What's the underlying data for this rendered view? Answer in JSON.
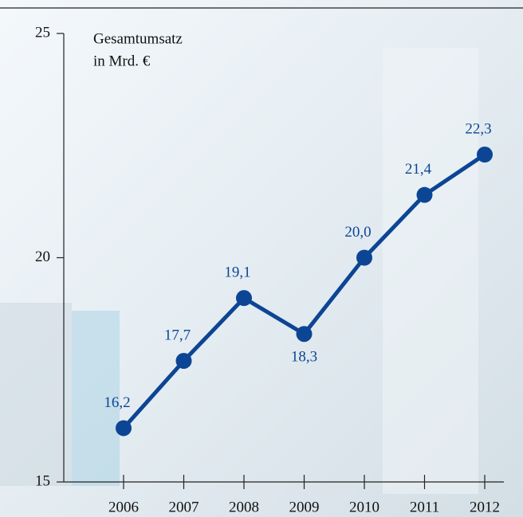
{
  "chart_data": {
    "type": "line",
    "ylabel": [
      "Gesamtumsatz",
      "in Mrd. €"
    ],
    "categories": [
      "2006",
      "2007",
      "2008",
      "2009",
      "2010",
      "2011",
      "2012"
    ],
    "series": [
      {
        "name": "Gesamtumsatz",
        "color": "#0d4595",
        "values": [
          16.2,
          17.7,
          19.1,
          18.3,
          20.0,
          21.4,
          22.3
        ],
        "value_labels": [
          "16,2",
          "17,7",
          "19,1",
          "18,3",
          "20,0",
          "21,4",
          "22,3"
        ]
      }
    ],
    "ylim": [
      15,
      25
    ],
    "yticks": [
      15,
      20,
      25
    ]
  }
}
